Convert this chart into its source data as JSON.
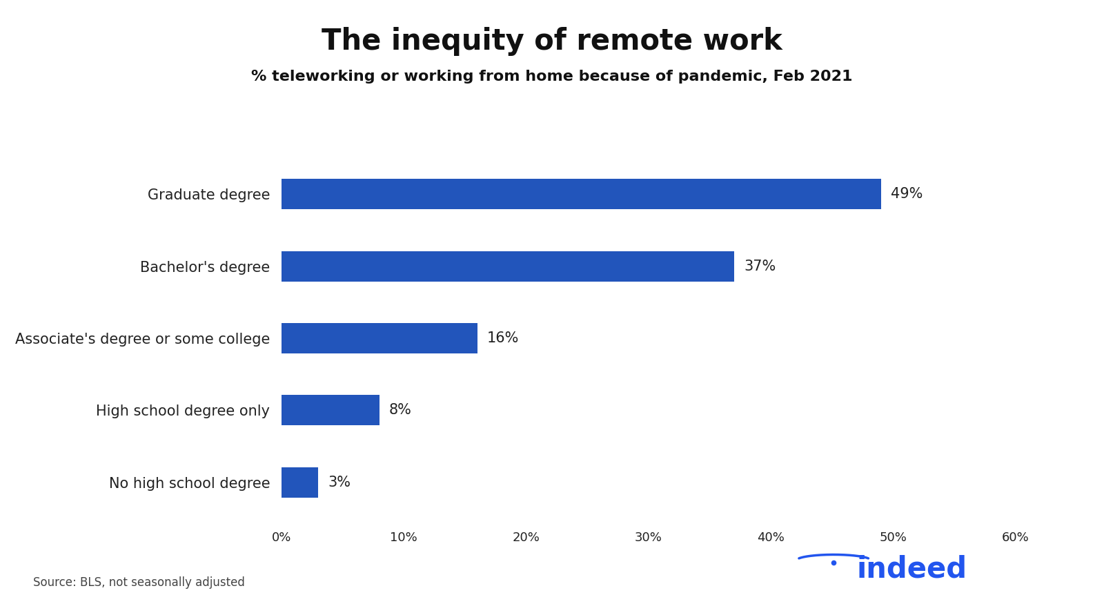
{
  "title": "The inequity of remote work",
  "subtitle": "% teleworking or working from home because of pandemic, Feb 2021",
  "categories": [
    "No high school degree",
    "High school degree only",
    "Associate's degree or some college",
    "Bachelor's degree",
    "Graduate degree"
  ],
  "values": [
    3,
    8,
    16,
    37,
    49
  ],
  "bar_color": "#2255bb",
  "label_color": "#222222",
  "value_label_color": "#222222",
  "xlim": [
    0,
    60
  ],
  "xticks": [
    0,
    10,
    20,
    30,
    40,
    50,
    60
  ],
  "xtick_labels": [
    "0%",
    "10%",
    "20%",
    "30%",
    "40%",
    "50%",
    "60%"
  ],
  "source_text": "Source: BLS, not seasonally adjusted",
  "indeed_color": "#2255ee",
  "background_color": "#ffffff",
  "title_fontsize": 30,
  "subtitle_fontsize": 16,
  "category_fontsize": 15,
  "value_fontsize": 15,
  "xtick_fontsize": 13,
  "source_fontsize": 12,
  "bar_height": 0.42
}
